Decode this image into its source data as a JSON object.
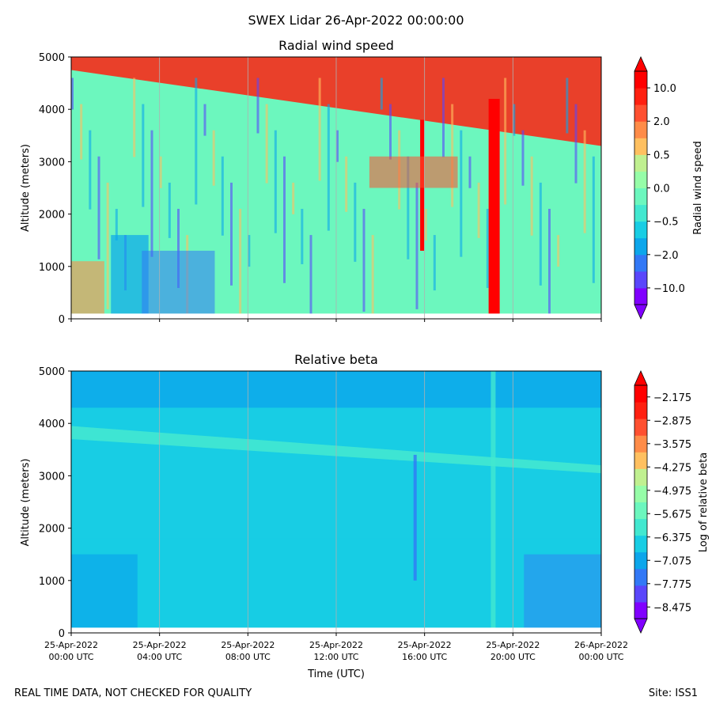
{
  "suptitle": "SWEX Lidar 26-Apr-2022 00:00:00",
  "footer": {
    "left": "REAL TIME DATA, NOT CHECKED FOR QUALITY",
    "right": "Site: ISS1"
  },
  "chart_data": [
    {
      "type": "heatmap",
      "title": "Radial wind speed",
      "xlabel": "",
      "ylabel": "Altitude (meters)",
      "ylim": [
        0,
        5000
      ],
      "yticks": [
        0,
        1000,
        2000,
        3000,
        4000,
        5000
      ],
      "xlim_hours": [
        0,
        24
      ],
      "xticks": [],
      "grid": "vertical",
      "colorbar": {
        "label": "Radial wind speed",
        "tick_labels": [
          "−10.0",
          "−2.0",
          "−0.5",
          "0.0",
          "0.5",
          "2.0",
          "10.0"
        ],
        "colors": [
          "#8000ff",
          "#5a46fb",
          "#3278f6",
          "#0ca6eb",
          "#18cde4",
          "#42e8d0",
          "#6cf7be",
          "#96fda8",
          "#c0f090",
          "#ffc060",
          "#ff8c48",
          "#ff5030",
          "#ff2010",
          "#ff0000"
        ]
      }
    },
    {
      "type": "heatmap",
      "title": "Relative beta",
      "xlabel": "Time (UTC)",
      "ylabel": "Altitude (meters)",
      "ylim": [
        0,
        5000
      ],
      "yticks": [
        0,
        1000,
        2000,
        3000,
        4000,
        5000
      ],
      "xlim_hours": [
        0,
        24
      ],
      "xticks": [
        {
          "hours": 0,
          "label": [
            "25-Apr-2022",
            "00:00 UTC"
          ]
        },
        {
          "hours": 4,
          "label": [
            "25-Apr-2022",
            "04:00 UTC"
          ]
        },
        {
          "hours": 8,
          "label": [
            "25-Apr-2022",
            "08:00 UTC"
          ]
        },
        {
          "hours": 12,
          "label": [
            "25-Apr-2022",
            "12:00 UTC"
          ]
        },
        {
          "hours": 16,
          "label": [
            "25-Apr-2022",
            "16:00 UTC"
          ]
        },
        {
          "hours": 20,
          "label": [
            "25-Apr-2022",
            "20:00 UTC"
          ]
        },
        {
          "hours": 24,
          "label": [
            "26-Apr-2022",
            "00:00 UTC"
          ]
        }
      ],
      "grid": "vertical",
      "colorbar": {
        "label": "Log of relative beta",
        "tick_labels": [
          "−8.475",
          "−7.775",
          "−7.075",
          "−6.375",
          "−5.675",
          "−4.975",
          "−4.275",
          "−3.575",
          "−2.875",
          "−2.175"
        ],
        "colors": [
          "#8000ff",
          "#5a46fb",
          "#3278f6",
          "#0ca6eb",
          "#18cde4",
          "#42e8d0",
          "#6cf7be",
          "#96fda8",
          "#c0f090",
          "#ffc060",
          "#ff8c48",
          "#ff5030",
          "#ff2010",
          "#ff0000"
        ]
      }
    }
  ]
}
